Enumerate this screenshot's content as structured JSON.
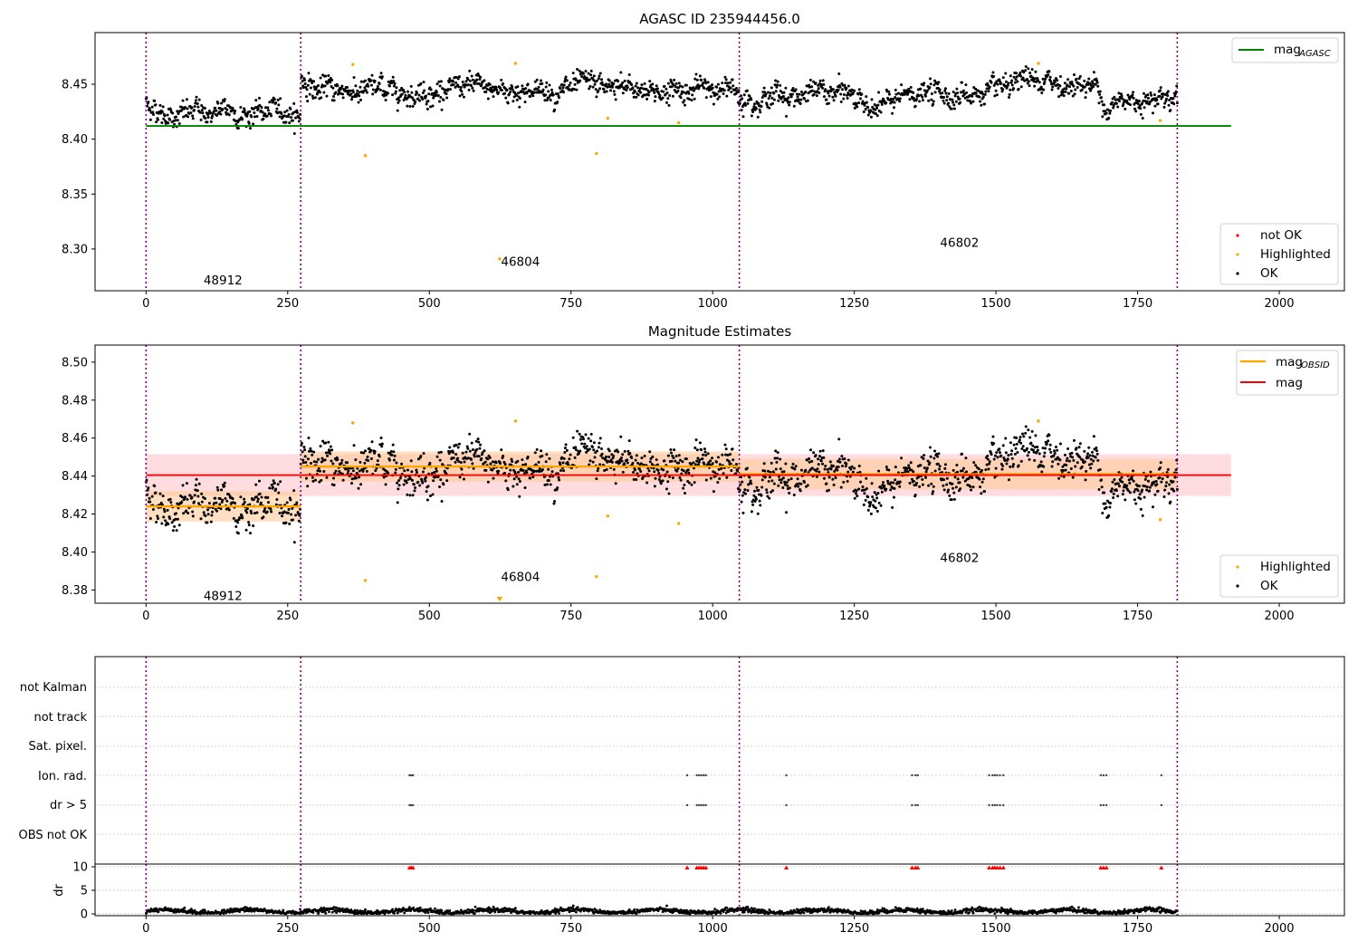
{
  "chart_data": [
    {
      "type": "scatter",
      "title": "AGASC ID 235944456.0",
      "xlim": [
        -90,
        2115
      ],
      "ylim": [
        8.262,
        8.497
      ],
      "xticks": [
        "0",
        "250",
        "500",
        "750",
        "1000",
        "1250",
        "1500",
        "1750",
        "2000"
      ],
      "yticks": [
        "8.30",
        "8.35",
        "8.40",
        "8.45"
      ],
      "obs_boundaries": [
        0,
        273,
        1047,
        1820
      ],
      "obs_labels": [
        {
          "text": "48912",
          "x": 135,
          "y": 8.272
        },
        {
          "text": "46804",
          "x": 660,
          "y": 8.289
        },
        {
          "text": "46802",
          "x": 1435,
          "y": 8.306
        }
      ],
      "mag_agasc": 8.412,
      "segments": [
        {
          "x": [
            0,
            273
          ],
          "mean": 8.424,
          "std": 0.008
        },
        {
          "x": [
            273,
            1047
          ],
          "mean": 8.445,
          "std": 0.008
        },
        {
          "x": [
            1047,
            1820
          ],
          "mean": 8.441,
          "std": 0.008
        }
      ],
      "highlighted": [
        {
          "x": 365,
          "y": 8.468
        },
        {
          "x": 387,
          "y": 8.385
        },
        {
          "x": 624,
          "y": 8.291
        },
        {
          "x": 652,
          "y": 8.469
        },
        {
          "x": 795,
          "y": 8.387
        },
        {
          "x": 815,
          "y": 8.419
        },
        {
          "x": 940,
          "y": 8.415
        },
        {
          "x": 1575,
          "y": 8.469
        },
        {
          "x": 1790,
          "y": 8.417
        }
      ],
      "legend_upper": [
        "mag",
        "AGASC"
      ],
      "legend_lower": [
        "not OK",
        "Highlighted",
        "OK"
      ],
      "colors": {
        "ok": "#000000",
        "highlighted": "#ffa500",
        "not_ok": "#ff0000",
        "agasc": "#008000"
      }
    },
    {
      "type": "scatter",
      "title": "Magnitude Estimates",
      "xlim": [
        -90,
        2115
      ],
      "ylim": [
        8.373,
        8.509
      ],
      "xticks": [
        "0",
        "250",
        "500",
        "750",
        "1000",
        "1250",
        "1500",
        "1750",
        "2000"
      ],
      "yticks": [
        "8.38",
        "8.40",
        "8.42",
        "8.44",
        "8.46",
        "8.48",
        "8.50"
      ],
      "obs_labels": [
        {
          "text": "48912",
          "x": 135,
          "y": 8.377
        },
        {
          "text": "46804",
          "x": 660,
          "y": 8.387
        },
        {
          "text": "46802",
          "x": 1435,
          "y": 8.397
        }
      ],
      "mag": 8.4405,
      "mag_band": [
        8.4295,
        8.4515
      ],
      "legend_upper": [
        "mag",
        "OBSID",
        "mag"
      ],
      "legend_lower": [
        "Highlighted",
        "OK"
      ],
      "colors": {
        "mag": "#ff0000",
        "mag_band": "#ffc0c4",
        "obsid": "#ffa500",
        "obsid_band": "#ffcc99"
      }
    },
    {
      "type": "scatter",
      "title": "",
      "flag_labels": [
        "not Kalman",
        "not track",
        "Sat. pixel.",
        "Ion. rad.",
        "dr > 5",
        "OBS not OK"
      ],
      "flag_points": {
        "Ion. rad.": [
          465,
          468,
          471,
          955,
          972,
          976,
          980,
          984,
          988,
          1130,
          1352,
          1358,
          1362,
          1488,
          1494,
          1498,
          1502,
          1507,
          1513,
          1685,
          1690,
          1695,
          1792
        ],
        "dr > 5": [
          465,
          468,
          471,
          955,
          972,
          976,
          980,
          984,
          988,
          1130,
          1352,
          1358,
          1362,
          1488,
          1494,
          1498,
          1502,
          1507,
          1513,
          1685,
          1690,
          1695,
          1792
        ]
      },
      "dr": {
        "ylabel": "dr",
        "yticks": [
          "0",
          "5",
          "10"
        ],
        "ylim": [
          0,
          10
        ],
        "high_x": [
          465,
          468,
          471,
          955,
          972,
          976,
          980,
          984,
          988,
          1130,
          1352,
          1358,
          1362,
          1488,
          1494,
          1498,
          1502,
          1507,
          1513,
          1685,
          1690,
          1695,
          1792
        ]
      },
      "xticks": [
        "0",
        "250",
        "500",
        "750",
        "1000",
        "1250",
        "1500",
        "1750",
        "2000"
      ]
    }
  ]
}
